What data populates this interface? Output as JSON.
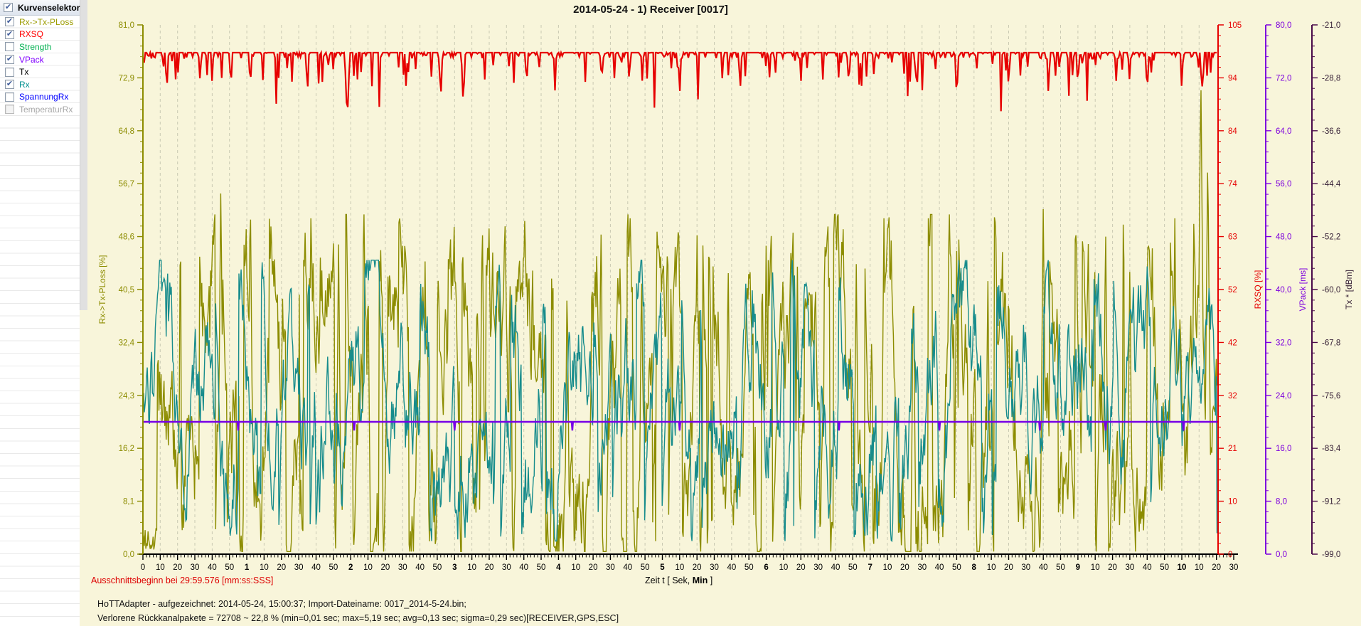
{
  "sidebar": {
    "header": {
      "label": "Kurvenselektor",
      "checked": true
    },
    "items": [
      {
        "label": "Rx->Tx-PLoss",
        "color": "#9c9c00",
        "checked": true,
        "enabled": true
      },
      {
        "label": "RXSQ",
        "color": "#ff0000",
        "checked": true,
        "enabled": true
      },
      {
        "label": "Strength",
        "color": "#00b050",
        "checked": false,
        "enabled": true
      },
      {
        "label": "VPack",
        "color": "#8000ff",
        "checked": true,
        "enabled": true
      },
      {
        "label": "Tx",
        "color": "#000000",
        "checked": false,
        "enabled": true
      },
      {
        "label": "Rx",
        "color": "#009090",
        "checked": true,
        "enabled": true
      },
      {
        "label": "SpannungRx",
        "color": "#0000ff",
        "checked": false,
        "enabled": true
      },
      {
        "label": "TemperaturRx",
        "color": "#a8a8a8",
        "checked": false,
        "enabled": false
      }
    ]
  },
  "chart_data": {
    "type": "line",
    "title": "2014-05-24  -  1) Receiver [0017]",
    "background": "#f8f5da",
    "gridline_color": "#c9c9b2",
    "x_axis": {
      "title_pre": "Zeit  t   [ Sek, ",
      "title_bold": "Min",
      "title_post": " ]",
      "range_seconds": [
        0,
        630
      ],
      "ticks": [
        [
          0,
          "0",
          0
        ],
        [
          10,
          "10",
          0
        ],
        [
          20,
          "20",
          0
        ],
        [
          30,
          "30",
          0
        ],
        [
          40,
          "40",
          0
        ],
        [
          50,
          "50",
          0
        ],
        [
          60,
          "1",
          1
        ],
        [
          70,
          "10",
          0
        ],
        [
          80,
          "20",
          0
        ],
        [
          90,
          "30",
          0
        ],
        [
          100,
          "40",
          0
        ],
        [
          110,
          "50",
          0
        ],
        [
          120,
          "2",
          1
        ],
        [
          130,
          "10",
          0
        ],
        [
          140,
          "20",
          0
        ],
        [
          150,
          "30",
          0
        ],
        [
          160,
          "40",
          0
        ],
        [
          170,
          "50",
          0
        ],
        [
          180,
          "3",
          1
        ],
        [
          190,
          "10",
          0
        ],
        [
          200,
          "20",
          0
        ],
        [
          210,
          "30",
          0
        ],
        [
          220,
          "40",
          0
        ],
        [
          230,
          "50",
          0
        ],
        [
          240,
          "4",
          1
        ],
        [
          250,
          "10",
          0
        ],
        [
          260,
          "20",
          0
        ],
        [
          270,
          "30",
          0
        ],
        [
          280,
          "40",
          0
        ],
        [
          290,
          "50",
          0
        ],
        [
          300,
          "5",
          1
        ],
        [
          310,
          "10",
          0
        ],
        [
          320,
          "20",
          0
        ],
        [
          330,
          "30",
          0
        ],
        [
          340,
          "40",
          0
        ],
        [
          350,
          "50",
          0
        ],
        [
          360,
          "6",
          1
        ],
        [
          370,
          "10",
          0
        ],
        [
          380,
          "20",
          0
        ],
        [
          390,
          "30",
          0
        ],
        [
          400,
          "40",
          0
        ],
        [
          410,
          "50",
          0
        ],
        [
          420,
          "7",
          1
        ],
        [
          430,
          "10",
          0
        ],
        [
          440,
          "20",
          0
        ],
        [
          450,
          "30",
          0
        ],
        [
          460,
          "40",
          0
        ],
        [
          470,
          "50",
          0
        ],
        [
          480,
          "8",
          1
        ],
        [
          490,
          "10",
          0
        ],
        [
          500,
          "20",
          0
        ],
        [
          510,
          "30",
          0
        ],
        [
          520,
          "40",
          0
        ],
        [
          530,
          "50",
          0
        ],
        [
          540,
          "9",
          1
        ],
        [
          550,
          "10",
          0
        ],
        [
          560,
          "20",
          0
        ],
        [
          570,
          "30",
          0
        ],
        [
          580,
          "40",
          0
        ],
        [
          590,
          "50",
          0
        ],
        [
          600,
          "10",
          1
        ],
        [
          610,
          "10",
          0
        ],
        [
          620,
          "20",
          0
        ],
        [
          630,
          "30",
          0
        ]
      ]
    },
    "y_axes": {
      "left": {
        "title": "Rx->Tx-PLoss  [%]",
        "color": "#8c8c00",
        "range": [
          0,
          81
        ],
        "ticks": [
          "81,0",
          "72,9",
          "64,8",
          "56,7",
          "48,6",
          "40,5",
          "32,4",
          "24,3",
          "16,2",
          "8,1",
          "0,0"
        ]
      },
      "rxsq": {
        "title": "RXSQ  [%]",
        "color": "#e60000",
        "range": [
          0,
          105
        ],
        "ticks": [
          "105",
          "94",
          "84",
          "74",
          "63",
          "52",
          "42",
          "32",
          "21",
          "10",
          "0"
        ]
      },
      "vpack": {
        "title": "VPack  [ms]",
        "color": "#7d00dd",
        "range": [
          0,
          80
        ],
        "ticks": [
          "80,0",
          "72,0",
          "64,0",
          "56,0",
          "48,0",
          "40,0",
          "32,0",
          "24,0",
          "16,0",
          "8,0",
          "0,0"
        ]
      },
      "tx": {
        "title": "Tx *  [dBm]",
        "color": "#4a0b4a",
        "label_color": "#362036",
        "range": [
          -99,
          -21
        ],
        "ticks": [
          "-21,0",
          "-28,8",
          "-36,6",
          "-44,4",
          "-52,2",
          "-60,0",
          "-67,8",
          "-75,6",
          "-83,4",
          "-91,2",
          "-99,0"
        ]
      }
    },
    "series": [
      {
        "name": "Rx->Tx-PLoss",
        "axis": "left",
        "color": "#8c8c00",
        "style": "spiky-noise",
        "seed": 1337,
        "base": 22,
        "typical_band": [
          1,
          52
        ],
        "low_start_seconds": 8,
        "peaks": [
          [
            45,
            57
          ],
          [
            62,
            56
          ],
          [
            75,
            50
          ],
          [
            97,
            52
          ],
          [
            113,
            48
          ],
          [
            130,
            44
          ],
          [
            150,
            49
          ],
          [
            163,
            46
          ],
          [
            180,
            45
          ],
          [
            196,
            53
          ],
          [
            212,
            44
          ],
          [
            225,
            47
          ],
          [
            245,
            43
          ],
          [
            262,
            48
          ],
          [
            288,
            45
          ],
          [
            305,
            43
          ],
          [
            320,
            50
          ],
          [
            338,
            46
          ],
          [
            360,
            49
          ],
          [
            378,
            44
          ],
          [
            395,
            47
          ],
          [
            412,
            45
          ],
          [
            428,
            52
          ],
          [
            445,
            44
          ],
          [
            455,
            46
          ],
          [
            470,
            47
          ],
          [
            488,
            43
          ],
          [
            500,
            44
          ],
          [
            520,
            54
          ],
          [
            543,
            47
          ],
          [
            556,
            51
          ],
          [
            570,
            45
          ],
          [
            583,
            48
          ],
          [
            596,
            52
          ],
          [
            611,
            74
          ],
          [
            615,
            62
          ]
        ]
      },
      {
        "name": "RXSQ",
        "axis": "rxsq",
        "color": "#e60000",
        "style": "top-line-with-dips",
        "seed": 99,
        "baseline": 99.5,
        "typical_dip": [
          94,
          98
        ],
        "deep_dips": [
          [
            40,
            93
          ],
          [
            62,
            92
          ],
          [
            95,
            91
          ],
          [
            118,
            86
          ],
          [
            152,
            92
          ],
          [
            172,
            90
          ],
          [
            185,
            89
          ],
          [
            238,
            92
          ],
          [
            265,
            93
          ],
          [
            310,
            91
          ],
          [
            345,
            92
          ],
          [
            380,
            93
          ],
          [
            415,
            92
          ],
          [
            447,
            91
          ],
          [
            470,
            90
          ],
          [
            500,
            92
          ],
          [
            523,
            91
          ],
          [
            540,
            92
          ],
          [
            562,
            93
          ],
          [
            580,
            91
          ],
          [
            600,
            92
          ],
          [
            612,
            91
          ]
        ]
      },
      {
        "name": "Rx",
        "axis": "left",
        "color": "#178c8c",
        "style": "dense-noise",
        "seed": 4242,
        "band_center": 24,
        "typical_band": [
          2,
          45
        ]
      },
      {
        "name": "VPack",
        "axis": "vpack",
        "color": "#7700e6",
        "style": "constant",
        "value": 20.0,
        "notch_depth": 1.3,
        "notch_times": [
          55,
          122,
          180,
          248,
          310,
          402,
          460,
          518,
          556,
          601
        ]
      }
    ]
  },
  "footer": {
    "ausschnitt": "Ausschnittsbeginn bei 29:59.576 [mm:ss:SSS]",
    "line1": "HoTTAdapter - aufgezeichnet: 2014-05-24, 15:00:37; Import-Dateiname: 0017_2014-5-24.bin;",
    "line2": "Verlorene Rückkanalpakete = 72708 ~ 22,8 % (min=0,01 sec; max=5,19 sec; avg=0,13 sec; sigma=0,29 sec)[RECEIVER,GPS,ESC]"
  }
}
